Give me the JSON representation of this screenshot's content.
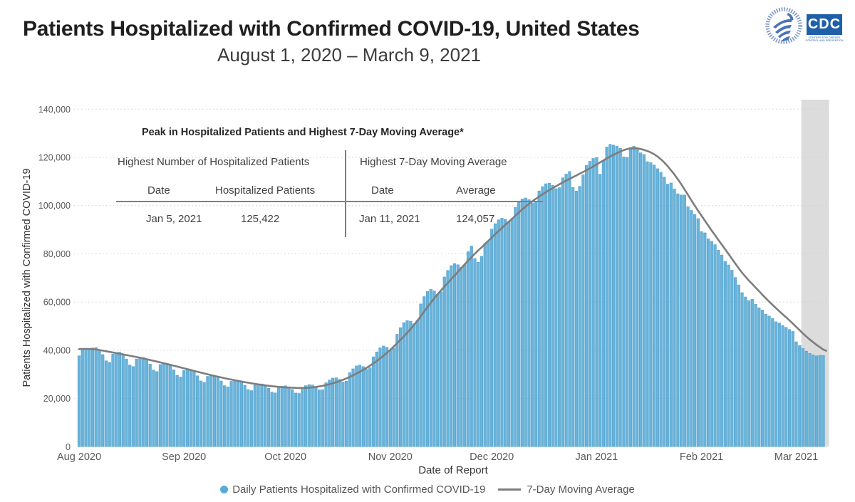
{
  "header": {
    "title": "Patients Hospitalized with Confirmed COVID-19, United States",
    "subtitle": "August 1, 2020 – March 9, 2021"
  },
  "logos": {
    "hhs_icon": "hhs-eagle-logo",
    "cdc_label": "CDC",
    "cdc_sub1": "CENTERS FOR DISEASE",
    "cdc_sub2": "CONTROL AND PREVENTION",
    "cdc_blue": "#1e5fa8",
    "hhs_blue": "#4a74b8"
  },
  "annotation": {
    "title": "Peak in Hospitalized Patients and Highest 7-Day Moving Average*",
    "left_header": "Highest Number of Hospitalized Patients",
    "left_date_label": "Date",
    "left_value_label": "Hospitalized Patients",
    "left_date": "Jan 5, 2021",
    "left_value": "125,422",
    "right_header": "Highest 7-Day Moving Average",
    "right_date_label": "Date",
    "right_value_label": "Average",
    "right_date": "Jan 11, 2021",
    "right_value": "124,057"
  },
  "legend": {
    "bar_label": "Daily Patients Hospitalized with Confirmed COVID-19",
    "line_label": "7-Day Moving Average"
  },
  "chart_data": {
    "type": "bar+line",
    "xlabel": "Date of Report",
    "ylabel": "Patients Hospitalized with Confirmed COVID-19",
    "ylim": [
      0,
      140000
    ],
    "ytick_values": [
      0,
      20000,
      40000,
      60000,
      80000,
      100000,
      120000,
      140000
    ],
    "ytick_labels": [
      "0",
      "20,000",
      "40,000",
      "60,000",
      "80,000",
      "100,000",
      "120,000",
      "140,000"
    ],
    "xtick_labels": [
      "Aug 2020",
      "Sep 2020",
      "Oct 2020",
      "Nov 2020",
      "Dec 2020",
      "Jan 2021",
      "Feb 2021",
      "Mar 2021"
    ],
    "start_date": "2020-08-01",
    "end_date": "2021-03-09",
    "bar_series_name": "Daily Patients Hospitalized with Confirmed COVID-19",
    "line_series_name": "7-Day Moving Average",
    "bar_color": "#69b3da",
    "bar_edge_color": "#53a2cc",
    "line_color": "#7d7d7d",
    "grid_color": "#d2d2d2",
    "shade_color": "#dcdcdc",
    "shaded_region": {
      "start_date": "2021-03-03",
      "end_date": "2021-03-09"
    },
    "peak_bar": {
      "date": "2021-01-05",
      "value": 125422
    },
    "peak_moving_average": {
      "date": "2021-01-11",
      "value": 124057
    },
    "moving_average_keypoints": [
      [
        "2020-08-01",
        40300
      ],
      [
        "2020-08-04",
        40800
      ],
      [
        "2020-08-09",
        39600
      ],
      [
        "2020-08-14",
        38300
      ],
      [
        "2020-08-19",
        36900
      ],
      [
        "2020-08-24",
        35300
      ],
      [
        "2020-08-29",
        33600
      ],
      [
        "2020-09-03",
        31800
      ],
      [
        "2020-09-08",
        30000
      ],
      [
        "2020-09-13",
        28400
      ],
      [
        "2020-09-18",
        27000
      ],
      [
        "2020-09-23",
        25800
      ],
      [
        "2020-09-28",
        24900
      ],
      [
        "2020-10-03",
        24400
      ],
      [
        "2020-10-07",
        24300
      ],
      [
        "2020-10-11",
        24900
      ],
      [
        "2020-10-15",
        26200
      ],
      [
        "2020-10-19",
        28200
      ],
      [
        "2020-10-23",
        31000
      ],
      [
        "2020-10-27",
        34400
      ],
      [
        "2020-10-31",
        38800
      ],
      [
        "2020-11-03",
        42800
      ],
      [
        "2020-11-06",
        47200
      ],
      [
        "2020-11-09",
        52000
      ],
      [
        "2020-11-13",
        60000
      ],
      [
        "2020-11-17",
        66500
      ],
      [
        "2020-11-21",
        72500
      ],
      [
        "2020-11-25",
        78800
      ],
      [
        "2020-11-29",
        84000
      ],
      [
        "2020-12-03",
        89500
      ],
      [
        "2020-12-07",
        94500
      ],
      [
        "2020-12-11",
        99800
      ],
      [
        "2020-12-15",
        103800
      ],
      [
        "2020-12-19",
        107300
      ],
      [
        "2020-12-23",
        110400
      ],
      [
        "2020-12-27",
        113200
      ],
      [
        "2020-12-31",
        116200
      ],
      [
        "2021-01-04",
        119600
      ],
      [
        "2021-01-07",
        121900
      ],
      [
        "2021-01-10",
        123600
      ],
      [
        "2021-01-11",
        124057
      ],
      [
        "2021-01-13",
        123900
      ],
      [
        "2021-01-15",
        123300
      ],
      [
        "2021-01-18",
        121500
      ],
      [
        "2021-01-20",
        119600
      ],
      [
        "2021-01-23",
        114800
      ],
      [
        "2021-01-26",
        109200
      ],
      [
        "2021-01-29",
        102000
      ],
      [
        "2021-02-01",
        95800
      ],
      [
        "2021-02-04",
        89600
      ],
      [
        "2021-02-07",
        83800
      ],
      [
        "2021-02-10",
        78000
      ],
      [
        "2021-02-13",
        71800
      ],
      [
        "2021-02-16",
        67500
      ],
      [
        "2021-02-19",
        63000
      ],
      [
        "2021-02-22",
        58700
      ],
      [
        "2021-02-25",
        54900
      ],
      [
        "2021-02-28",
        51200
      ],
      [
        "2021-03-03",
        46800
      ],
      [
        "2021-03-06",
        43200
      ],
      [
        "2021-03-09",
        40300
      ]
    ],
    "daily_bar_weekly_pattern": [
      0.975,
      0.915,
      0.905,
      1.0,
      1.025,
      1.035,
      1.02
    ],
    "pattern_amplitude_keypoints": [
      [
        0,
        1.0
      ],
      [
        95,
        1.0
      ],
      [
        118,
        0.45
      ],
      [
        150,
        0.28
      ],
      [
        220,
        0.22
      ]
    ],
    "daily_bar_lag_days": 2.6,
    "daily_bar_overrides": {
      "2020-08-01": 37700,
      "2020-08-02": 40100,
      "2020-08-03": 40700,
      "2020-11-26": 78000,
      "2020-11-27": 76500,
      "2020-11-28": 79000,
      "2020-12-25": 107500,
      "2020-12-26": 106000,
      "2020-12-27": 108000,
      "2021-01-02": 113000,
      "2021-01-03": 118500,
      "2021-01-04": 124300,
      "2021-01-05": 125422,
      "2021-01-06": 125100,
      "2021-01-07": 124600,
      "2021-01-08": 123800,
      "2021-01-09": 120200,
      "2021-01-10": 120000,
      "2021-01-11": 124100,
      "2021-01-12": 124600,
      "2021-01-13": 123400,
      "2021-01-14": 121900,
      "2021-01-15": 121200,
      "2021-01-16": 118200,
      "2021-01-17": 117800,
      "2021-01-18": 116800,
      "2021-01-19": 115300,
      "2021-01-20": 113800,
      "2021-01-21": 111800,
      "2021-01-22": 108900,
      "2021-01-23": 109400,
      "2021-01-24": 106900,
      "2021-01-25": 104900,
      "2021-01-26": 104400,
      "2021-01-27": 104400,
      "2021-01-28": 99500,
      "2021-01-29": 98000,
      "2021-01-30": 96300,
      "2021-01-31": 94600,
      "2021-02-01": 89200,
      "2021-02-02": 88700,
      "2021-02-03": 86200,
      "2021-02-04": 85200,
      "2021-02-05": 83800,
      "2021-02-06": 81500,
      "2021-02-07": 79500,
      "2021-02-08": 76800,
      "2021-02-09": 75400,
      "2021-02-10": 73200,
      "2021-02-11": 70200,
      "2021-02-12": 67100,
      "2021-02-13": 63900,
      "2021-02-14": 62100,
      "2021-02-15": 60600,
      "2021-02-16": 61100,
      "2021-02-17": 59100,
      "2021-02-18": 57600,
      "2021-02-19": 56700,
      "2021-02-20": 55000,
      "2021-02-21": 54200,
      "2021-02-22": 53200,
      "2021-02-23": 51800,
      "2021-02-24": 51300,
      "2021-02-25": 50300,
      "2021-02-26": 49500,
      "2021-02-27": 48600,
      "2021-02-28": 47800,
      "2021-03-01": 43500,
      "2021-03-02": 42000,
      "2021-03-03": 40800,
      "2021-03-04": 39600,
      "2021-03-05": 38700,
      "2021-03-06": 38100,
      "2021-03-07": 37700,
      "2021-03-08": 37900,
      "2021-03-09": 37800
    }
  }
}
